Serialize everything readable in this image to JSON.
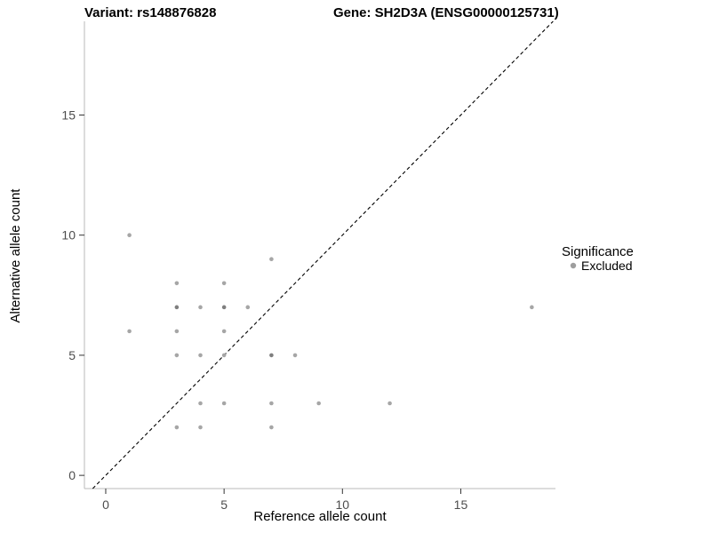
{
  "title": {
    "variant": "Variant: rs148876828",
    "gene": "Gene: SH2D3A (ENSG00000125731)"
  },
  "legend": {
    "title": "Significance",
    "items": [
      {
        "label": "Excluded",
        "color": "#9e9e9e"
      }
    ]
  },
  "colors": {
    "point": "#a6a6a6",
    "point_dark": "#7f7f7f",
    "axis_line": "#b9b9b9",
    "tick_mark": "#333333",
    "identity_line": "#000000"
  },
  "chart_data": {
    "type": "scatter",
    "title": "Variant: rs148876828  Gene: SH2D3A (ENSG00000125731)",
    "xlabel": "Reference allele count",
    "ylabel": "Alternative allele count",
    "xlim": [
      -0.9,
      19.0
    ],
    "ylim": [
      -0.55,
      18.9
    ],
    "xticks": [
      0,
      5,
      10,
      15
    ],
    "yticks": [
      0,
      5,
      10,
      15
    ],
    "grid": false,
    "legend_position": "right",
    "identity_line": {
      "style": "dashed",
      "from": [
        -0.55,
        -0.55
      ],
      "to": [
        18.9,
        18.9
      ]
    },
    "series": [
      {
        "name": "Excluded",
        "points": [
          [
            1,
            10
          ],
          [
            1,
            6
          ],
          [
            3,
            8
          ],
          [
            3,
            7,
            2
          ],
          [
            3,
            6
          ],
          [
            3,
            5
          ],
          [
            3,
            2
          ],
          [
            4,
            7
          ],
          [
            4,
            5
          ],
          [
            4,
            3
          ],
          [
            4,
            2
          ],
          [
            5,
            8
          ],
          [
            5,
            7,
            2
          ],
          [
            5,
            6
          ],
          [
            5,
            5
          ],
          [
            5,
            3
          ],
          [
            6,
            7
          ],
          [
            7,
            9
          ],
          [
            7,
            5,
            2
          ],
          [
            7,
            3
          ],
          [
            7,
            2
          ],
          [
            8,
            5
          ],
          [
            9,
            3
          ],
          [
            12,
            3
          ],
          [
            18,
            7
          ]
        ]
      }
    ]
  }
}
